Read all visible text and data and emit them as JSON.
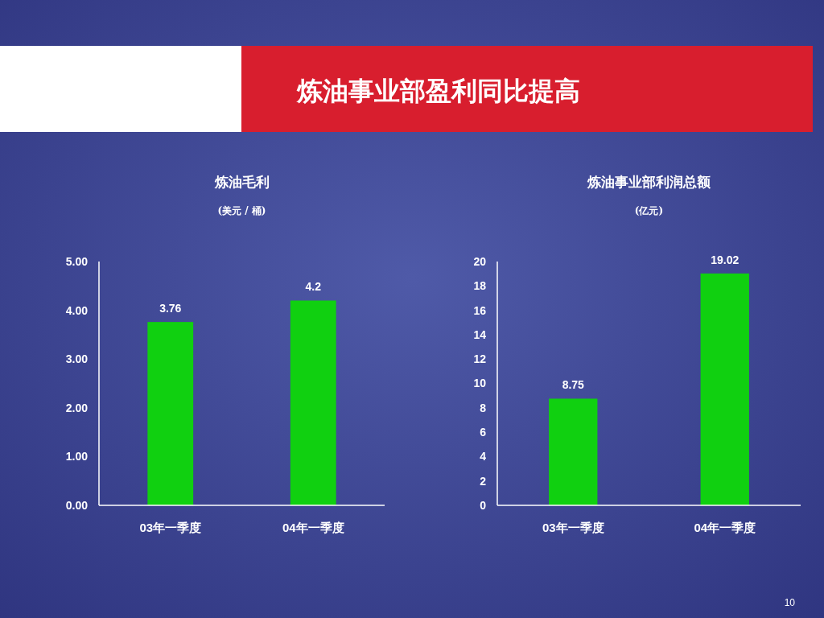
{
  "chart_data": [
    {
      "type": "other",
      "title": "炼油事业部盈利同比提高",
      "annotations": [
        "10"
      ]
    },
    {
      "type": "bar",
      "title": "炼油毛利",
      "subtitle": "(美元 / 桶)",
      "categories": [
        "03年一季度",
        "04年一季度"
      ],
      "values": [
        3.76,
        4.2
      ],
      "color": "#10d010",
      "ylim": [
        0,
        5
      ],
      "yticks": [
        {
          "value": 0,
          "label": "0.00"
        },
        {
          "value": 1,
          "label": "1.00"
        },
        {
          "value": 2,
          "label": "2.00"
        },
        {
          "value": 3,
          "label": "3.00"
        },
        {
          "value": 4,
          "label": "4.00"
        },
        {
          "value": 5,
          "label": "5.00"
        }
      ],
      "data_labels": true,
      "grid": false
    },
    {
      "type": "bar",
      "title": "炼油事业部利润总额",
      "subtitle": "(亿元)",
      "categories": [
        "03年一季度",
        "04年一季度"
      ],
      "values": [
        8.75,
        19.02
      ],
      "color": "#10d010",
      "ylim": [
        0,
        20
      ],
      "yticks": [
        0,
        2,
        4,
        6,
        8,
        10,
        12,
        14,
        16,
        18,
        20
      ],
      "data_labels": true,
      "grid": false
    }
  ]
}
